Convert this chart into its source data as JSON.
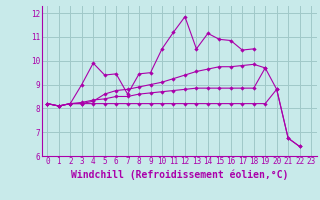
{
  "xlabel": "Windchill (Refroidissement éolien,°C)",
  "background_color": "#c8eaea",
  "grid_color": "#a0c8c8",
  "line_color": "#aa00aa",
  "xlim": [
    -0.5,
    23.5
  ],
  "ylim": [
    6.0,
    12.3
  ],
  "yticks": [
    6,
    7,
    8,
    9,
    10,
    11,
    12
  ],
  "xticks": [
    0,
    1,
    2,
    3,
    4,
    5,
    6,
    7,
    8,
    9,
    10,
    11,
    12,
    13,
    14,
    15,
    16,
    17,
    18,
    19,
    20,
    21,
    22,
    23
  ],
  "series": [
    [
      8.2,
      8.1,
      8.2,
      9.0,
      9.9,
      9.4,
      9.45,
      8.6,
      9.45,
      9.5,
      10.5,
      11.2,
      11.85,
      10.5,
      11.15,
      10.9,
      10.85,
      10.45,
      10.5,
      null,
      null,
      null,
      null,
      null
    ],
    [
      8.2,
      8.1,
      8.2,
      8.2,
      8.3,
      8.6,
      8.75,
      8.8,
      8.9,
      9.0,
      9.1,
      9.25,
      9.4,
      9.55,
      9.65,
      9.75,
      9.75,
      9.8,
      9.85,
      9.7,
      null,
      null,
      null,
      null
    ],
    [
      8.2,
      8.1,
      8.2,
      8.25,
      8.35,
      8.4,
      8.5,
      8.5,
      8.6,
      8.65,
      8.7,
      8.75,
      8.8,
      8.85,
      8.85,
      8.85,
      8.85,
      8.85,
      8.85,
      9.7,
      8.8,
      6.75,
      6.4,
      null
    ],
    [
      8.2,
      8.1,
      8.2,
      8.2,
      8.2,
      8.2,
      8.2,
      8.2,
      8.2,
      8.2,
      8.2,
      8.2,
      8.2,
      8.2,
      8.2,
      8.2,
      8.2,
      8.2,
      8.2,
      8.2,
      8.8,
      6.75,
      6.4,
      null
    ]
  ],
  "tick_fontsize": 5.5,
  "label_fontsize": 7.0
}
